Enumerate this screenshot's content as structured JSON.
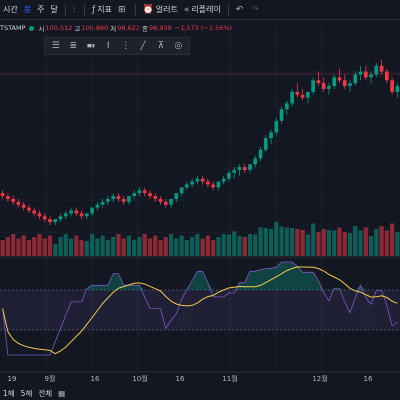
{
  "toolbar": {
    "items": [
      {
        "label": "시간"
      },
      {
        "label": "봉"
      },
      {
        "label": "주"
      },
      {
        "label": "달"
      },
      {
        "label": "지표"
      },
      {
        "label": "얼러트"
      },
      {
        "label": "리플레이"
      }
    ]
  },
  "legend": {
    "symbol": "TSTAMP",
    "open_label": "시",
    "open": "100,512",
    "high_label": "고",
    "high": "100,860",
    "low_label": "저",
    "low": "98,622",
    "close_label": "종",
    "close": "98,939",
    "change": "−1,573 (−1.56%)"
  },
  "colors": {
    "up": "#089981",
    "down": "#f23645",
    "accent": "#2962ff",
    "rsi": "#7e57c2",
    "ma": "#f7c948"
  },
  "chart_data": {
    "type": "candlestick",
    "x_ticks": [
      "19",
      "9월",
      "16",
      "10월",
      "16",
      "11월",
      "12월",
      "16"
    ],
    "candles": [
      [
        62,
        63,
        60,
        61
      ],
      [
        61,
        62,
        59,
        60
      ],
      [
        60,
        61,
        58,
        59
      ],
      [
        59,
        60,
        57,
        58
      ],
      [
        58,
        59,
        56,
        57
      ],
      [
        57,
        58,
        55,
        56
      ],
      [
        56,
        57,
        54,
        55
      ],
      [
        55,
        56,
        53,
        54
      ],
      [
        54,
        55,
        52,
        53
      ],
      [
        53,
        54,
        51,
        52
      ],
      [
        52,
        53,
        51,
        53
      ],
      [
        53,
        55,
        52,
        54
      ],
      [
        54,
        56,
        53,
        55
      ],
      [
        55,
        57,
        54,
        56
      ],
      [
        56,
        57,
        54,
        55
      ],
      [
        55,
        56,
        53,
        54
      ],
      [
        54,
        55,
        53,
        55
      ],
      [
        55,
        57,
        54,
        57
      ],
      [
        57,
        59,
        56,
        58
      ],
      [
        58,
        60,
        57,
        59
      ],
      [
        59,
        61,
        58,
        60
      ],
      [
        60,
        62,
        59,
        61
      ],
      [
        61,
        62,
        59,
        60
      ],
      [
        60,
        61,
        58,
        59
      ],
      [
        59,
        61,
        58,
        61
      ],
      [
        61,
        63,
        60,
        62
      ],
      [
        62,
        64,
        61,
        63
      ],
      [
        63,
        64,
        61,
        62
      ],
      [
        62,
        63,
        60,
        61
      ],
      [
        61,
        62,
        59,
        60
      ],
      [
        60,
        61,
        58,
        59
      ],
      [
        59,
        60,
        57,
        58
      ],
      [
        58,
        60,
        57,
        60
      ],
      [
        60,
        62,
        59,
        62
      ],
      [
        62,
        64,
        61,
        64
      ],
      [
        64,
        66,
        63,
        65
      ],
      [
        65,
        67,
        64,
        66
      ],
      [
        66,
        68,
        65,
        67
      ],
      [
        67,
        68,
        65,
        66
      ],
      [
        66,
        67,
        64,
        65
      ],
      [
        65,
        66,
        63,
        64
      ],
      [
        64,
        66,
        63,
        66
      ],
      [
        66,
        68,
        65,
        67
      ],
      [
        67,
        70,
        66,
        69
      ],
      [
        69,
        71,
        67,
        70
      ],
      [
        70,
        72,
        68,
        71
      ],
      [
        71,
        72,
        69,
        70
      ],
      [
        70,
        72,
        69,
        72
      ],
      [
        72,
        75,
        71,
        74
      ],
      [
        74,
        78,
        73,
        77
      ],
      [
        77,
        82,
        76,
        81
      ],
      [
        81,
        84,
        79,
        83
      ],
      [
        83,
        88,
        82,
        87
      ],
      [
        87,
        92,
        86,
        91
      ],
      [
        91,
        94,
        89,
        93
      ],
      [
        93,
        98,
        92,
        97
      ],
      [
        97,
        100,
        95,
        96
      ],
      [
        96,
        98,
        94,
        95
      ],
      [
        95,
        97,
        93,
        97
      ],
      [
        97,
        102,
        96,
        101
      ],
      [
        101,
        104,
        99,
        100
      ],
      [
        100,
        102,
        97,
        98
      ],
      [
        98,
        100,
        96,
        99
      ],
      [
        99,
        103,
        98,
        102
      ],
      [
        102,
        105,
        100,
        101
      ],
      [
        101,
        103,
        98,
        99
      ],
      [
        99,
        101,
        97,
        100
      ],
      [
        100,
        104,
        99,
        103
      ],
      [
        103,
        106,
        101,
        104
      ],
      [
        104,
        106,
        101,
        102
      ],
      [
        102,
        104,
        100,
        103
      ],
      [
        103,
        107,
        102,
        106
      ],
      [
        106,
        108,
        103,
        104
      ],
      [
        104,
        105,
        100,
        101
      ],
      [
        101,
        102,
        96,
        97
      ],
      [
        97,
        100,
        95,
        99
      ]
    ]
  },
  "bottom": {
    "range_1d": "1해",
    "range_5d": "5해",
    "range_all": "전체"
  }
}
